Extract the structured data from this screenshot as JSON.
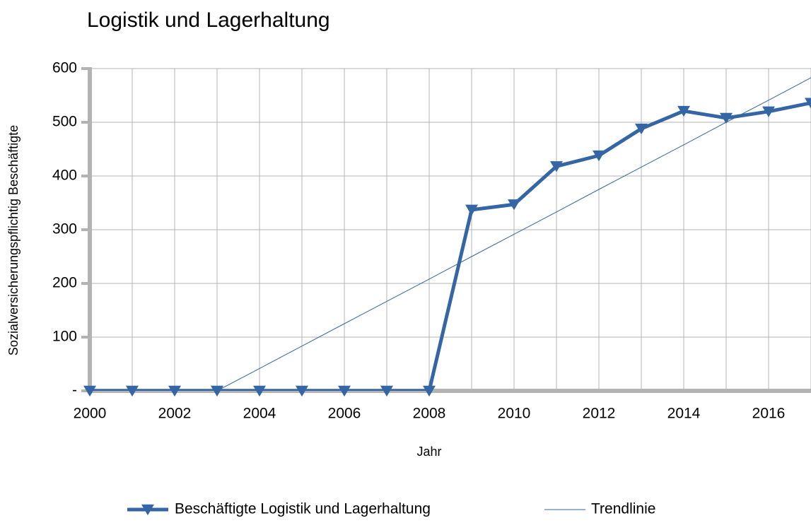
{
  "chart_data": {
    "type": "line",
    "title": "Logistik und Lagerhaltung",
    "x_label": "Jahr",
    "y_label": "Sozialversicherungspflichtig Beschäftigte",
    "x": [
      2000,
      2001,
      2002,
      2003,
      2004,
      2005,
      2006,
      2007,
      2008,
      2009,
      2010,
      2011,
      2012,
      2013,
      2014,
      2015,
      2016,
      2017
    ],
    "series": [
      {
        "name": "Beschäftigte Logistik und Lagerhaltung",
        "color": "#3465a4",
        "values": [
          0,
          0,
          0,
          0,
          0,
          0,
          0,
          0,
          0,
          337,
          347,
          418,
          438,
          488,
          521,
          508,
          520,
          536
        ]
      },
      {
        "name": "Trendlinie",
        "color": "#3465a4",
        "values": [
          null,
          null,
          null,
          0,
          41.6,
          83.3,
          125,
          166.6,
          208,
          250,
          291.5,
          333,
          375,
          416.5,
          458,
          500,
          541,
          583
        ]
      }
    ],
    "xlim": [
      2000,
      2017
    ],
    "xticks": [
      2000,
      2002,
      2004,
      2006,
      2008,
      2010,
      2012,
      2014,
      2016
    ],
    "ylim": [
      0,
      600
    ],
    "yticks": [
      {
        "value": 0,
        "label": "-"
      },
      100,
      200,
      300,
      400,
      500,
      600
    ],
    "grid": true,
    "legend": "bottom"
  }
}
